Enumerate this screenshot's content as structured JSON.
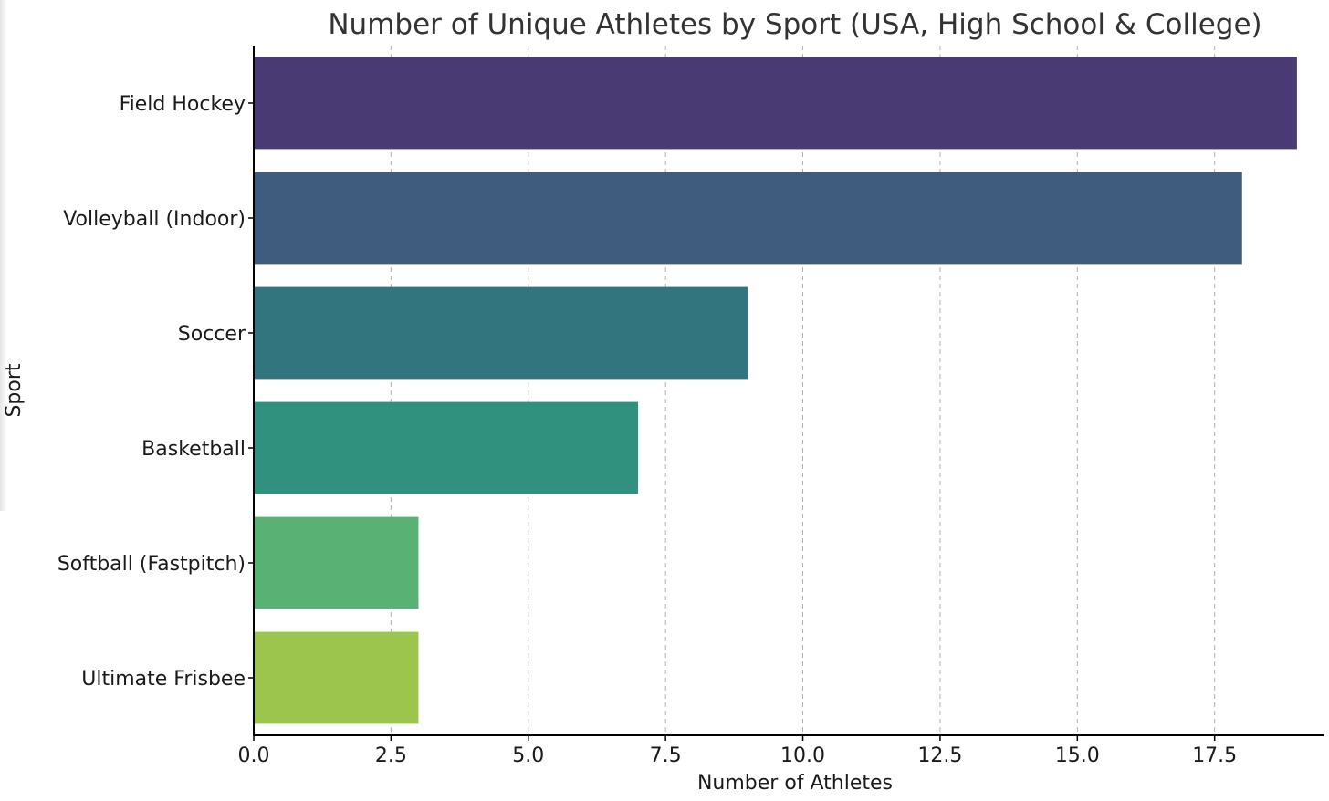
{
  "chart_data": {
    "type": "bar",
    "orientation": "horizontal",
    "title": "Number of Unique Athletes by Sport (USA, High School & College)",
    "xlabel": "Number of Athletes",
    "ylabel": "Sport",
    "categories": [
      "Field Hockey",
      "Volleyball (Indoor)",
      "Soccer",
      "Basketball",
      "Softball (Fastpitch)",
      "Ultimate Frisbee"
    ],
    "values": [
      19,
      18,
      9,
      7,
      3,
      3
    ],
    "colors": [
      "#4a3a73",
      "#3f5c7f",
      "#32757e",
      "#2f917e",
      "#59b174",
      "#9bc54d"
    ],
    "xlim": [
      0,
      19.5
    ],
    "xticks": [
      0.0,
      2.5,
      5.0,
      7.5,
      10.0,
      12.5,
      15.0,
      17.5
    ],
    "xtick_labels": [
      "0.0",
      "2.5",
      "5.0",
      "7.5",
      "10.0",
      "12.5",
      "15.0",
      "17.5"
    ],
    "grid": "x-dashed",
    "legend": "none"
  }
}
